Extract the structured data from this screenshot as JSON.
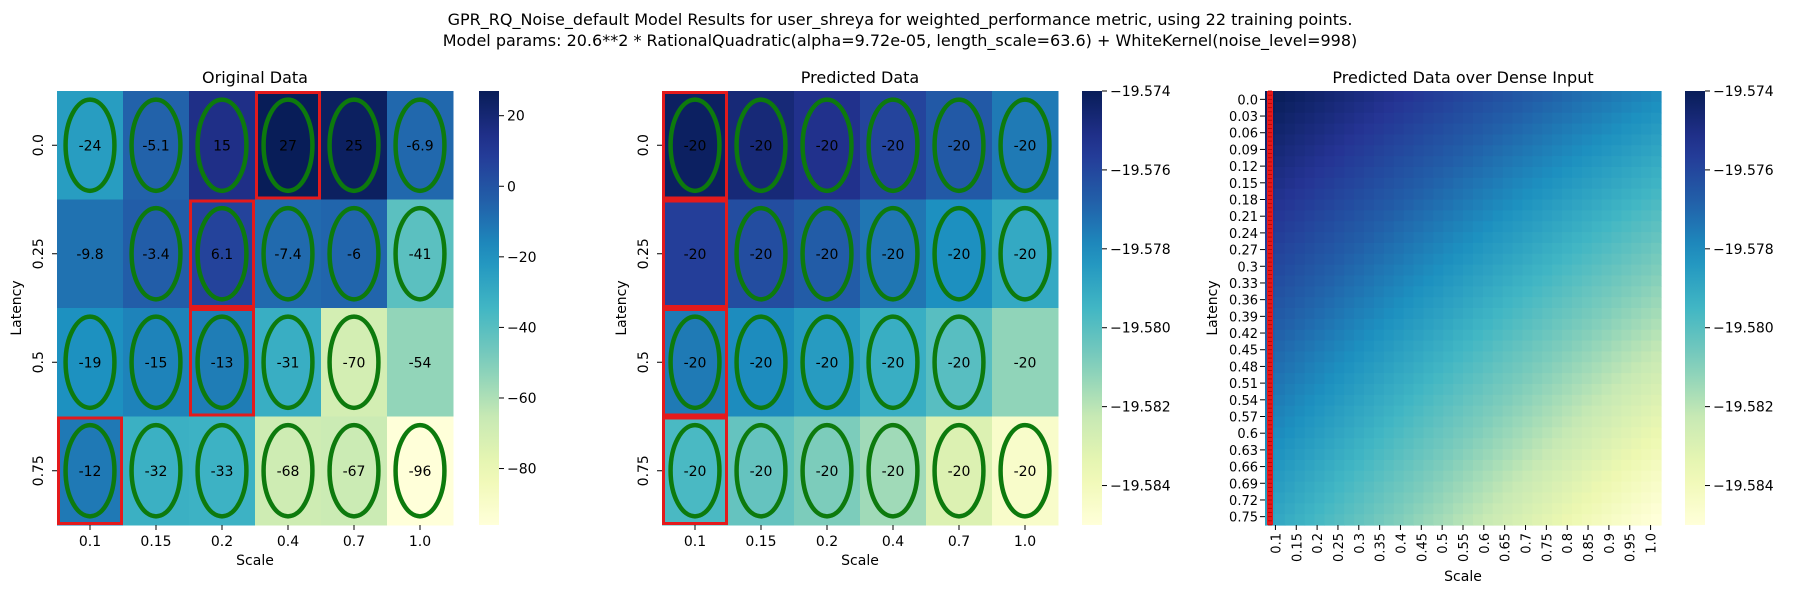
{
  "figure": {
    "title_line1": "GPR_RQ_Noise_default Model Results for user_shreya for weighted_performance metric, using 22 training points.",
    "title_line2": "Model params: 20.6**2 * RationalQuadratic(alpha=9.72e-05, length_scale=63.6) + WhiteKernel(noise_level=998)"
  },
  "colors": {
    "colormap": "YlGnBu",
    "stops": [
      "#ffffd9",
      "#edf8b1",
      "#c7e9b4",
      "#7fcdbb",
      "#41b6c4",
      "#1d91c0",
      "#225ea8",
      "#253494",
      "#081d58"
    ],
    "highlight_red": "#e31a1c",
    "highlight_green": "#0d7a0d"
  },
  "chart_data": [
    {
      "type": "heatmap",
      "title": "Original Data",
      "xlabel": "Scale",
      "ylabel": "Latency",
      "x_categories": [
        "0.1",
        "0.15",
        "0.2",
        "0.4",
        "0.7",
        "1.0"
      ],
      "y_categories": [
        "0.0",
        "0.25",
        "0.5",
        "0.75"
      ],
      "values": [
        [
          -24,
          -5.1,
          15,
          27,
          25,
          -6.9
        ],
        [
          -9.8,
          -3.4,
          6.1,
          -7.4,
          -6,
          -41
        ],
        [
          -19,
          -15,
          -13,
          -31,
          -70,
          -54
        ],
        [
          -12,
          -32,
          -33,
          -68,
          -67,
          -96
        ]
      ],
      "annotations": [
        [
          "-24",
          "-5.1",
          "15",
          "27",
          "25",
          "-6.9"
        ],
        [
          "-9.8",
          "-3.4",
          "6.1",
          "-7.4",
          "-6",
          "-41"
        ],
        [
          "-19",
          "-15",
          "-13",
          "-31",
          "-70",
          "-54"
        ],
        [
          "-12",
          "-32",
          "-33",
          "-68",
          "-67",
          "-96"
        ]
      ],
      "color_range": [
        -96,
        27
      ],
      "colorbar_ticks": [
        "20",
        "0",
        "−20",
        "−40",
        "−60",
        "−80"
      ],
      "colorbar_tick_values": [
        20,
        0,
        -20,
        -40,
        -60,
        -80
      ],
      "green_ellipses": [
        [
          1,
          1,
          1,
          1,
          1,
          1
        ],
        [
          0,
          1,
          1,
          1,
          1,
          1
        ],
        [
          1,
          1,
          1,
          1,
          1,
          0
        ],
        [
          1,
          1,
          1,
          1,
          1,
          1
        ]
      ],
      "red_boxes": [
        [
          0,
          3
        ],
        [
          1,
          2
        ],
        [
          2,
          2
        ],
        [
          3,
          0
        ]
      ]
    },
    {
      "type": "heatmap",
      "title": "Predicted Data",
      "xlabel": "Scale",
      "ylabel": "Latency",
      "x_categories": [
        "0.1",
        "0.15",
        "0.2",
        "0.4",
        "0.7",
        "1.0"
      ],
      "y_categories": [
        "0.0",
        "0.25",
        "0.5",
        "0.75"
      ],
      "values": [
        [
          -19.5742,
          -19.5747,
          -19.5752,
          -19.5759,
          -19.5766,
          -19.5775
        ],
        [
          -19.5757,
          -19.5762,
          -19.5767,
          -19.5774,
          -19.5781,
          -19.579
        ],
        [
          -19.5775,
          -19.578,
          -19.5785,
          -19.5792,
          -19.58,
          -19.5812
        ],
        [
          -19.5797,
          -19.5803,
          -19.5808,
          -19.5815,
          -19.583,
          -19.5845
        ]
      ],
      "annotations": [
        [
          "-20",
          "-20",
          "-20",
          "-20",
          "-20",
          "-20"
        ],
        [
          "-20",
          "-20",
          "-20",
          "-20",
          "-20",
          "-20"
        ],
        [
          "-20",
          "-20",
          "-20",
          "-20",
          "-20",
          "-20"
        ],
        [
          "-20",
          "-20",
          "-20",
          "-20",
          "-20",
          "-20"
        ]
      ],
      "color_range": [
        -19.585,
        -19.574
      ],
      "colorbar_ticks": [
        "−19.574",
        "−19.576",
        "−19.578",
        "−19.580",
        "−19.582",
        "−19.584"
      ],
      "colorbar_tick_values": [
        -19.574,
        -19.576,
        -19.578,
        -19.58,
        -19.582,
        -19.584
      ],
      "green_ellipses": [
        [
          1,
          1,
          1,
          1,
          1,
          1
        ],
        [
          0,
          1,
          1,
          1,
          1,
          1
        ],
        [
          1,
          1,
          1,
          1,
          1,
          0
        ],
        [
          1,
          1,
          1,
          1,
          1,
          1
        ]
      ],
      "red_boxes": [
        [
          0,
          0
        ],
        [
          1,
          0
        ],
        [
          2,
          0
        ],
        [
          3,
          0
        ]
      ]
    },
    {
      "type": "heatmap",
      "title": "Predicted Data over Dense Input",
      "xlabel": "Scale",
      "ylabel": "Latency",
      "x_categories": [
        "0.1",
        "0.15",
        "0.2",
        "0.25",
        "0.3",
        "0.35",
        "0.4",
        "0.45",
        "0.5",
        "0.55",
        "0.6",
        "0.65",
        "0.7",
        "0.75",
        "0.8",
        "0.85",
        "0.9",
        "0.95",
        "1.0"
      ],
      "y_categories": [
        "0.0",
        "0.03",
        "0.06",
        "0.09",
        "0.12",
        "0.15",
        "0.18",
        "0.21",
        "0.24",
        "0.27",
        "0.3",
        "0.33",
        "0.36",
        "0.39",
        "0.42",
        "0.45",
        "0.48",
        "0.51",
        "0.54",
        "0.57",
        "0.6",
        "0.63",
        "0.66",
        "0.69",
        "0.72",
        "0.75"
      ],
      "value_range": [
        -19.585,
        -19.574
      ],
      "color_range": [
        -19.585,
        -19.574
      ],
      "colorbar_ticks": [
        "−19.574",
        "−19.576",
        "−19.578",
        "−19.580",
        "−19.582",
        "−19.584"
      ],
      "colorbar_tick_values": [
        -19.574,
        -19.576,
        -19.578,
        -19.58,
        -19.582,
        -19.584
      ],
      "red_column": "0.1"
    }
  ]
}
